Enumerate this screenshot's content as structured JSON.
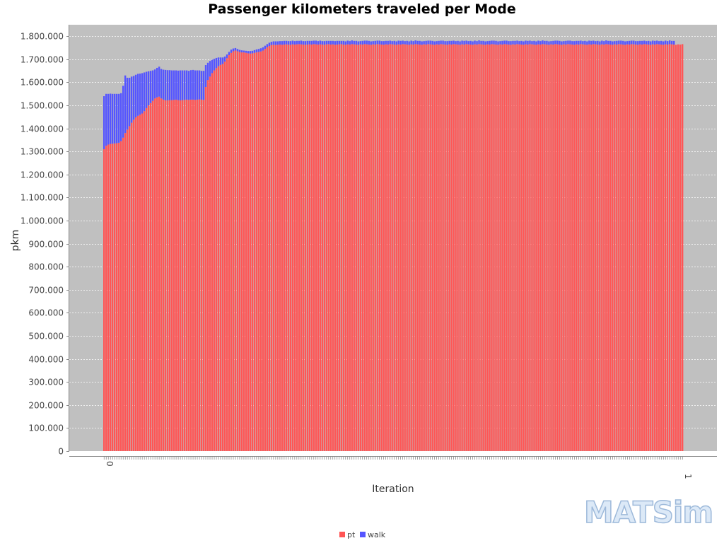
{
  "chart_data": {
    "type": "bar",
    "stacked": true,
    "title": "Passenger kilometers traveled per Mode",
    "xlabel": "Iteration",
    "ylabel": "pkm",
    "ylim": [
      0,
      1850000
    ],
    "y_ticks": [
      0,
      100000,
      200000,
      300000,
      400000,
      500000,
      600000,
      700000,
      800000,
      900000,
      1000000,
      1100000,
      1200000,
      1300000,
      1400000,
      1500000,
      1600000,
      1700000,
      1800000
    ],
    "y_tick_labels": [
      "0",
      "100.000",
      "200.000",
      "300.000",
      "400.000",
      "500.000",
      "600.000",
      "700.000",
      "800.000",
      "900.000",
      "1.000.000",
      "1.100.000",
      "1.200.000",
      "1.300.000",
      "1.400.000",
      "1.500.000",
      "1.600.000",
      "1.700.000",
      "1.800.000"
    ],
    "x_first_label": "0",
    "x_last_label": "1",
    "grid": true,
    "legend_position": "bottom",
    "background": "#c0c0c0",
    "series": [
      {
        "name": "pt",
        "color": "#ff5555",
        "values": [
          1310000,
          1325000,
          1330000,
          1333000,
          1334000,
          1335000,
          1336000,
          1338000,
          1345000,
          1360000,
          1380000,
          1395000,
          1410000,
          1425000,
          1438000,
          1448000,
          1455000,
          1460000,
          1465000,
          1475000,
          1488000,
          1500000,
          1510000,
          1520000,
          1530000,
          1535000,
          1538000,
          1530000,
          1525000,
          1522000,
          1522000,
          1523000,
          1523000,
          1524000,
          1525000,
          1523000,
          1522000,
          1523000,
          1524000,
          1525000,
          1524000,
          1525000,
          1525000,
          1524000,
          1525000,
          1526000,
          1525000,
          1524000,
          1580000,
          1610000,
          1625000,
          1640000,
          1652000,
          1662000,
          1670000,
          1676000,
          1680000,
          1690000,
          1705000,
          1718000,
          1728000,
          1735000,
          1738000,
          1735000,
          1732000,
          1730000,
          1730000,
          1728000,
          1726000,
          1725000,
          1726000,
          1728000,
          1730000,
          1732000,
          1734000,
          1738000,
          1745000,
          1752000,
          1758000,
          1762000,
          1763000,
          1762000,
          1763000,
          1764000,
          1763000,
          1764000,
          1765000,
          1764000,
          1763000,
          1765000,
          1764000,
          1765000,
          1766000,
          1765000,
          1764000,
          1763000,
          1764000,
          1765000,
          1764000,
          1766000,
          1765000,
          1764000,
          1765000,
          1764000,
          1763000,
          1765000,
          1766000,
          1764000,
          1765000,
          1763000,
          1764000,
          1765000,
          1766000,
          1764000,
          1763000,
          1765000,
          1764000,
          1766000,
          1765000,
          1764000,
          1763000,
          1765000,
          1764000,
          1766000,
          1765000,
          1764000,
          1763000,
          1765000,
          1764000,
          1766000,
          1765000,
          1764000,
          1763000,
          1765000,
          1764000,
          1766000,
          1765000,
          1764000,
          1763000,
          1765000,
          1764000,
          1766000,
          1765000,
          1764000,
          1763000,
          1765000,
          1764000,
          1766000,
          1765000,
          1764000,
          1763000,
          1765000,
          1764000,
          1766000,
          1765000,
          1764000,
          1763000,
          1765000,
          1764000,
          1766000,
          1765000,
          1764000,
          1763000,
          1765000,
          1764000,
          1766000,
          1765000,
          1764000,
          1763000,
          1765000,
          1764000,
          1766000,
          1765000,
          1764000,
          1763000,
          1765000,
          1764000,
          1766000,
          1765000,
          1764000,
          1763000,
          1765000,
          1764000,
          1766000,
          1765000,
          1764000,
          1763000,
          1765000,
          1764000,
          1766000,
          1765000,
          1764000,
          1763000,
          1765000,
          1764000,
          1766000,
          1765000,
          1764000,
          1763000,
          1765000,
          1764000,
          1766000,
          1765000,
          1764000,
          1763000,
          1765000,
          1764000,
          1766000,
          1765000,
          1764000,
          1763000,
          1765000,
          1764000,
          1766000,
          1765000,
          1764000,
          1763000,
          1765000,
          1764000,
          1766000,
          1765000,
          1764000,
          1763000,
          1765000,
          1764000,
          1766000,
          1765000,
          1764000,
          1763000,
          1765000,
          1764000,
          1766000,
          1765000,
          1764000,
          1763000,
          1765000,
          1764000,
          1766000,
          1765000,
          1764000,
          1763000,
          1765000,
          1764000,
          1766000,
          1765000,
          1764000,
          1763000,
          1765000,
          1764000,
          1766000,
          1765000,
          1764000,
          1763000,
          1765000,
          1764000,
          1766000,
          1765000,
          1764000,
          1763000,
          1765000,
          1764000,
          1766000,
          1765000,
          1764000,
          1763000,
          1765000,
          1764000,
          1766000,
          1765000,
          1764000,
          1763000,
          1765000,
          1764000,
          1766000
        ]
      },
      {
        "name": "walk",
        "color": "#5555ff",
        "values": [
          230000,
          225000,
          220000,
          218000,
          216000,
          215000,
          214000,
          212000,
          208000,
          225000,
          250000,
          225000,
          210000,
          200000,
          190000,
          185000,
          182000,
          178000,
          175000,
          168000,
          158000,
          148000,
          140000,
          132000,
          126000,
          128000,
          130000,
          128000,
          130000,
          132000,
          131000,
          130000,
          129000,
          128000,
          127000,
          128000,
          130000,
          129000,
          128000,
          127000,
          126000,
          128000,
          129000,
          128000,
          127000,
          126000,
          125000,
          126000,
          95000,
          75000,
          68000,
          58000,
          50000,
          44000,
          38000,
          32000,
          28000,
          22000,
          16000,
          14000,
          14000,
          12000,
          11000,
          10000,
          9000,
          9000,
          8000,
          9000,
          10000,
          11000,
          11000,
          12000,
          13000,
          13000,
          14000,
          14000,
          14000,
          14000,
          14000,
          14000,
          15000,
          16000,
          15000,
          15000,
          16000,
          16000,
          15000,
          15000,
          16000,
          16000,
          15000,
          15000,
          14000,
          16000,
          15000,
          16000,
          16000,
          15000,
          16000,
          15000,
          16000,
          15000,
          16000,
          15000,
          16000,
          15000,
          14000,
          16000,
          15000,
          16000,
          16000,
          15000,
          14000,
          16000,
          15000,
          16000,
          15000,
          16000,
          15000,
          16000,
          15000,
          14000,
          16000,
          15000,
          16000,
          16000,
          15000,
          14000,
          16000,
          15000,
          16000,
          15000,
          16000,
          15000,
          16000,
          15000,
          14000,
          16000,
          15000,
          16000,
          16000,
          15000,
          14000,
          16000,
          15000,
          16000,
          15000,
          16000,
          15000,
          16000,
          15000,
          14000,
          16000,
          15000,
          16000,
          16000,
          15000,
          14000,
          16000,
          15000,
          16000,
          15000,
          16000,
          15000,
          16000,
          15000,
          14000,
          16000,
          15000,
          16000,
          16000,
          15000,
          14000,
          16000,
          15000,
          16000,
          15000,
          16000,
          15000,
          16000,
          15000,
          14000,
          16000,
          15000,
          16000,
          16000,
          15000,
          14000,
          16000,
          15000,
          16000,
          15000,
          16000,
          15000,
          16000,
          15000,
          14000,
          16000,
          15000,
          16000,
          16000,
          15000,
          14000,
          16000,
          15000,
          16000,
          15000,
          16000,
          15000,
          16000,
          15000,
          14000,
          16000,
          15000,
          16000,
          16000,
          15000,
          14000,
          16000,
          15000,
          16000,
          15000,
          16000,
          15000,
          16000,
          15000,
          14000,
          16000,
          15000,
          16000,
          16000,
          15000,
          14000,
          16000,
          15000,
          16000,
          15000,
          16000,
          15000,
          16000,
          15000,
          14000,
          16000,
          15000,
          16000,
          16000,
          15000,
          14000,
          16000,
          15000,
          16000,
          15000,
          16000,
          15000,
          16000,
          15000,
          14000,
          16000,
          15000,
          16000,
          16000,
          15000,
          14000,
          16000,
          15000,
          16000,
          15000,
          16000,
          15000,
          16000
        ]
      }
    ]
  },
  "watermark": "MATSim"
}
